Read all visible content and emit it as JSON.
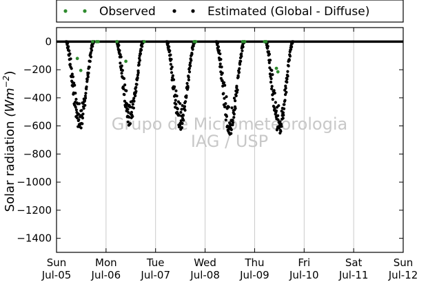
{
  "chart_data": {
    "type": "scatter",
    "title": "",
    "ylabel_main": "Solar radiation ",
    "ylabel_units": "(Wm",
    "ylabel_exp": "−2",
    "ylabel_close": ")",
    "xlabel": "",
    "ylim": [
      -1500,
      100
    ],
    "xlim": [
      0,
      7
    ],
    "yticks": [
      0,
      -200,
      -400,
      -600,
      -800,
      -1000,
      -1200,
      -1400
    ],
    "ytick_labels": [
      "0",
      "−200",
      "−400",
      "−600",
      "−800",
      "−1000",
      "−1200",
      "−1400"
    ],
    "xticks": [
      0,
      1,
      2,
      3,
      4,
      5,
      6,
      7
    ],
    "xtick_labels": [
      {
        "day": "Sun",
        "date": "Jul-05"
      },
      {
        "day": "Mon",
        "date": "Jul-06"
      },
      {
        "day": "Tue",
        "date": "Jul-07"
      },
      {
        "day": "Wed",
        "date": "Jul-08"
      },
      {
        "day": "Thu",
        "date": "Jul-09"
      },
      {
        "day": "Fri",
        "date": "Jul-10"
      },
      {
        "day": "Sat",
        "date": "Jul-11"
      },
      {
        "day": "Sun",
        "date": "Jul-12"
      }
    ],
    "grid": "vertical",
    "legend": {
      "placement": "top",
      "entries": [
        {
          "label": "Observed",
          "color": "#2e8b2e"
        },
        {
          "label": "Estimated (Global - Diffuse)",
          "color": "#000000"
        }
      ]
    },
    "watermark": [
      "Grupo de Micrometeorologia",
      "IAG / USP"
    ],
    "series": [
      {
        "name": "Estimated (Global - Diffuse)",
        "color": "#000000",
        "daily_curves": [
          {
            "start": 0.19,
            "end": 0.74,
            "min": -580
          },
          {
            "start": 1.21,
            "end": 1.74,
            "min": -550
          },
          {
            "start": 2.22,
            "end": 2.78,
            "min": -580
          },
          {
            "start": 3.22,
            "end": 3.78,
            "min": -610
          },
          {
            "start": 4.22,
            "end": 4.76,
            "min": -610
          }
        ]
      },
      {
        "name": "Observed",
        "color": "#2e8b2e",
        "points": [
          [
            0.42,
            -120
          ],
          [
            0.49,
            -205
          ],
          [
            0.73,
            0
          ],
          [
            0.81,
            0
          ],
          [
            0.84,
            0
          ],
          [
            1.22,
            0
          ],
          [
            1.4,
            -140
          ],
          [
            1.77,
            0
          ],
          [
            2.78,
            0
          ],
          [
            2.81,
            0
          ],
          [
            3.76,
            0
          ],
          [
            3.8,
            0
          ],
          [
            4.2,
            0
          ],
          [
            4.23,
            0
          ],
          [
            4.44,
            -190
          ],
          [
            4.47,
            -215
          ]
        ]
      }
    ]
  }
}
